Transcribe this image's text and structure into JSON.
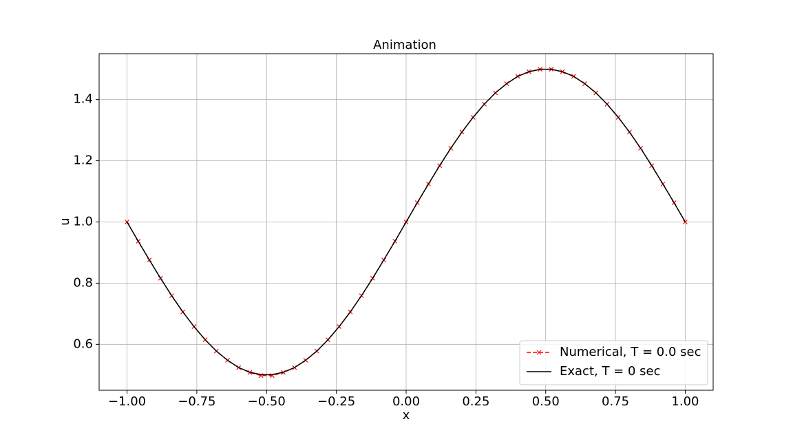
{
  "chart_data": {
    "type": "line",
    "title": "Animation",
    "x_label": "x",
    "y_label": "u",
    "x": [
      -1,
      -0.96,
      -0.92,
      -0.88,
      -0.84,
      -0.8,
      -0.76,
      -0.72,
      -0.68,
      -0.64,
      -0.6,
      -0.56,
      -0.52,
      -0.48,
      -0.44,
      -0.4,
      -0.36,
      -0.32,
      -0.28,
      -0.24,
      -0.2,
      -0.16,
      -0.12,
      -0.08,
      -0.04,
      0,
      0.04,
      0.08,
      0.12,
      0.16,
      0.2,
      0.24,
      0.28,
      0.32,
      0.36,
      0.4,
      0.44,
      0.48,
      0.52,
      0.56,
      0.6,
      0.64,
      0.68,
      0.72,
      0.76,
      0.8,
      0.84,
      0.88,
      0.92,
      0.96,
      1
    ],
    "series": [
      {
        "name": "Numerical, T = 0.0 sec",
        "color": "#ff0000",
        "linestyle": "dashed",
        "marker": "x",
        "values": [
          1.0,
          0.937,
          0.876,
          0.816,
          0.759,
          0.706,
          0.658,
          0.615,
          0.578,
          0.548,
          0.524,
          0.508,
          0.498,
          0.498,
          0.508,
          0.524,
          0.548,
          0.578,
          0.615,
          0.658,
          0.706,
          0.759,
          0.816,
          0.876,
          0.937,
          1.0,
          1.063,
          1.124,
          1.184,
          1.241,
          1.294,
          1.342,
          1.385,
          1.422,
          1.452,
          1.476,
          1.491,
          1.499,
          1.499,
          1.491,
          1.476,
          1.452,
          1.422,
          1.385,
          1.342,
          1.294,
          1.241,
          1.184,
          1.124,
          1.063,
          1.0
        ]
      },
      {
        "name": "Exact, T = 0 sec",
        "color": "#000000",
        "linestyle": "solid",
        "values": [
          1.0,
          0.937,
          0.876,
          0.816,
          0.759,
          0.706,
          0.658,
          0.615,
          0.578,
          0.548,
          0.524,
          0.509,
          0.501,
          0.501,
          0.509,
          0.524,
          0.548,
          0.578,
          0.615,
          0.658,
          0.706,
          0.759,
          0.816,
          0.876,
          0.937,
          1.0,
          1.063,
          1.124,
          1.184,
          1.241,
          1.294,
          1.342,
          1.385,
          1.422,
          1.452,
          1.476,
          1.491,
          1.499,
          1.499,
          1.491,
          1.476,
          1.452,
          1.422,
          1.385,
          1.342,
          1.294,
          1.241,
          1.184,
          1.124,
          1.063,
          1.0
        ]
      }
    ],
    "xlim": [
      -1.1,
      1.1
    ],
    "ylim": [
      0.45,
      1.55
    ],
    "xticks": [
      {
        "value": -1,
        "label": "−1.00"
      },
      {
        "value": -0.75,
        "label": "−0.75"
      },
      {
        "value": -0.5,
        "label": "−0.50"
      },
      {
        "value": -0.25,
        "label": "−0.25"
      },
      {
        "value": 0,
        "label": "0.00"
      },
      {
        "value": 0.25,
        "label": "0.25"
      },
      {
        "value": 0.5,
        "label": "0.50"
      },
      {
        "value": 0.75,
        "label": "0.75"
      },
      {
        "value": 1,
        "label": "1.00"
      }
    ],
    "yticks": [
      0.6,
      0.8,
      {
        "value": 1,
        "label": "1.0"
      },
      1.2,
      1.4
    ],
    "grid": true,
    "legend": "lower right"
  }
}
